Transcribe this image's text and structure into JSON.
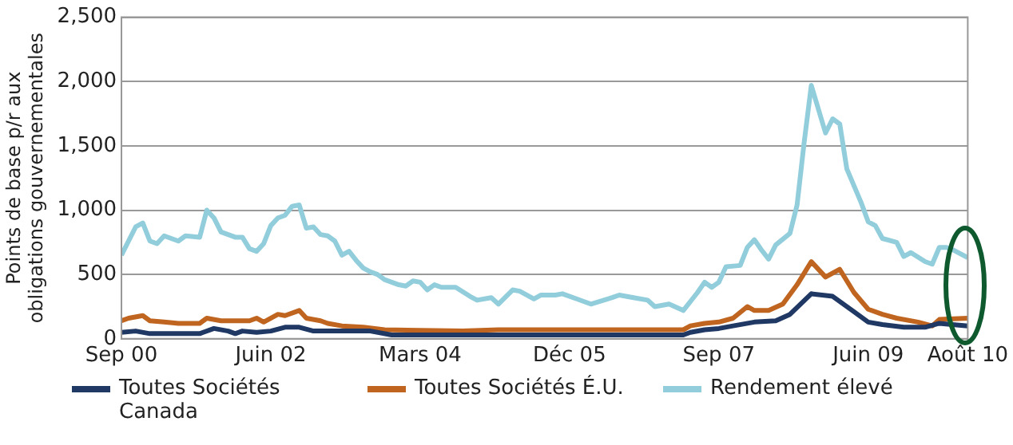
{
  "chart_data": {
    "type": "line",
    "ylabel": "Points de base p/r aux obligations gouvernementales",
    "xlim": [
      "2000-09",
      "2010-08"
    ],
    "xticks": [
      {
        "value": "2000-09",
        "label": "Sep 00"
      },
      {
        "value": "2002-06",
        "label": "Juin 02"
      },
      {
        "value": "2004-03",
        "label": "Mars 04"
      },
      {
        "value": "2005-12",
        "label": "Déc 05"
      },
      {
        "value": "2007-09",
        "label": "Sep 07"
      },
      {
        "value": "2009-06",
        "label": "Juin 09"
      },
      {
        "value": "2010-08",
        "label": "Août 10"
      }
    ],
    "ylim": [
      0,
      2500
    ],
    "yticks": [
      {
        "value": 0,
        "label": "0"
      },
      {
        "value": 500,
        "label": "500"
      },
      {
        "value": 1000,
        "label": "1,000"
      },
      {
        "value": 1500,
        "label": "1,500"
      },
      {
        "value": 2000,
        "label": "2,000"
      },
      {
        "value": 2500,
        "label": "2,500"
      }
    ],
    "grid": "y",
    "legend": "bottom",
    "marker": "none",
    "line_style": "solid",
    "series": [
      {
        "name": "Toutes Sociétés Canada",
        "color": "#1f3864",
        "x": [
          "2000-09",
          "2000-11",
          "2001-01",
          "2001-08",
          "2001-10",
          "2001-12",
          "2002-01",
          "2002-02",
          "2002-04",
          "2002-06",
          "2002-08",
          "2002-10",
          "2002-12",
          "2003-08",
          "2003-11",
          "2007-04",
          "2007-05",
          "2007-07",
          "2007-09",
          "2007-11",
          "2008-02",
          "2008-05",
          "2008-07",
          "2008-10",
          "2009-01",
          "2009-04",
          "2009-06",
          "2009-08",
          "2009-11",
          "2010-02",
          "2010-04",
          "2010-08"
        ],
        "values": [
          50,
          60,
          40,
          40,
          80,
          60,
          40,
          60,
          50,
          60,
          90,
          90,
          60,
          60,
          30,
          30,
          50,
          70,
          80,
          100,
          130,
          140,
          190,
          350,
          330,
          210,
          130,
          110,
          90,
          90,
          120,
          100
        ]
      },
      {
        "name": "Toutes Sociétés É.U.",
        "color": "#c0651f",
        "x": [
          "2000-09",
          "2000-10",
          "2000-12",
          "2001-01",
          "2001-03",
          "2001-05",
          "2001-08",
          "2001-09",
          "2001-11",
          "2002-03",
          "2002-04",
          "2002-05",
          "2002-07",
          "2002-08",
          "2002-10",
          "2002-11",
          "2003-01",
          "2003-02",
          "2003-04",
          "2003-07",
          "2003-10",
          "2004-09",
          "2005-02",
          "2007-04",
          "2007-05",
          "2007-07",
          "2007-09",
          "2007-11",
          "2008-01",
          "2008-02",
          "2008-04",
          "2008-06",
          "2008-08",
          "2008-10",
          "2008-12",
          "2009-02",
          "2009-04",
          "2009-06",
          "2009-08",
          "2009-10",
          "2010-01",
          "2010-03",
          "2010-04",
          "2010-08"
        ],
        "values": [
          140,
          160,
          180,
          140,
          130,
          120,
          120,
          160,
          140,
          140,
          160,
          130,
          190,
          180,
          220,
          160,
          140,
          120,
          100,
          90,
          70,
          60,
          70,
          70,
          100,
          120,
          130,
          160,
          250,
          220,
          220,
          270,
          420,
          600,
          480,
          540,
          360,
          230,
          190,
          160,
          130,
          100,
          150,
          160
        ]
      },
      {
        "name": "Rendement élevé",
        "color": "#92cddc",
        "x": [
          "2000-09",
          "2000-11",
          "2000-12",
          "2001-01",
          "2001-02",
          "2001-03",
          "2001-05",
          "2001-06",
          "2001-08",
          "2001-09",
          "2001-10",
          "2001-11",
          "2002-01",
          "2002-02",
          "2002-03",
          "2002-04",
          "2002-05",
          "2002-06",
          "2002-07",
          "2002-08",
          "2002-09",
          "2002-10",
          "2002-11",
          "2002-12",
          "2003-01",
          "2003-02",
          "2003-03",
          "2003-04",
          "2003-05",
          "2003-06",
          "2003-07",
          "2003-08",
          "2003-09",
          "2003-10",
          "2003-12",
          "2004-01",
          "2004-02",
          "2004-03",
          "2004-04",
          "2004-05",
          "2004-06",
          "2004-08",
          "2004-10",
          "2004-11",
          "2005-01",
          "2005-02",
          "2005-04",
          "2005-05",
          "2005-07",
          "2005-08",
          "2005-10",
          "2005-11",
          "2006-01",
          "2006-03",
          "2006-06",
          "2006-07",
          "2006-09",
          "2006-11",
          "2006-12",
          "2007-02",
          "2007-04",
          "2007-06",
          "2007-07",
          "2007-08",
          "2007-09",
          "2007-10",
          "2007-12",
          "2008-01",
          "2008-02",
          "2008-03",
          "2008-04",
          "2008-05",
          "2008-07",
          "2008-08",
          "2008-09",
          "2008-10",
          "2008-12",
          "2009-01",
          "2009-02",
          "2009-03",
          "2009-05",
          "2009-06",
          "2009-07",
          "2009-08",
          "2009-10",
          "2009-11",
          "2009-12",
          "2010-02",
          "2010-03",
          "2010-04",
          "2010-05",
          "2010-06",
          "2010-08"
        ],
        "values": [
          650,
          870,
          900,
          760,
          740,
          800,
          760,
          800,
          790,
          1000,
          940,
          830,
          790,
          790,
          700,
          680,
          740,
          880,
          940,
          960,
          1030,
          1040,
          860,
          870,
          810,
          800,
          760,
          650,
          680,
          610,
          550,
          520,
          500,
          460,
          420,
          410,
          450,
          440,
          380,
          420,
          400,
          400,
          330,
          300,
          320,
          270,
          380,
          370,
          310,
          340,
          340,
          350,
          310,
          270,
          320,
          340,
          320,
          300,
          250,
          270,
          220,
          360,
          440,
          400,
          440,
          560,
          570,
          710,
          770,
          690,
          620,
          730,
          820,
          1040,
          1530,
          1970,
          1600,
          1710,
          1670,
          1320,
          1060,
          910,
          880,
          780,
          750,
          640,
          670,
          600,
          580,
          710,
          710,
          690,
          630
        ]
      }
    ]
  }
}
